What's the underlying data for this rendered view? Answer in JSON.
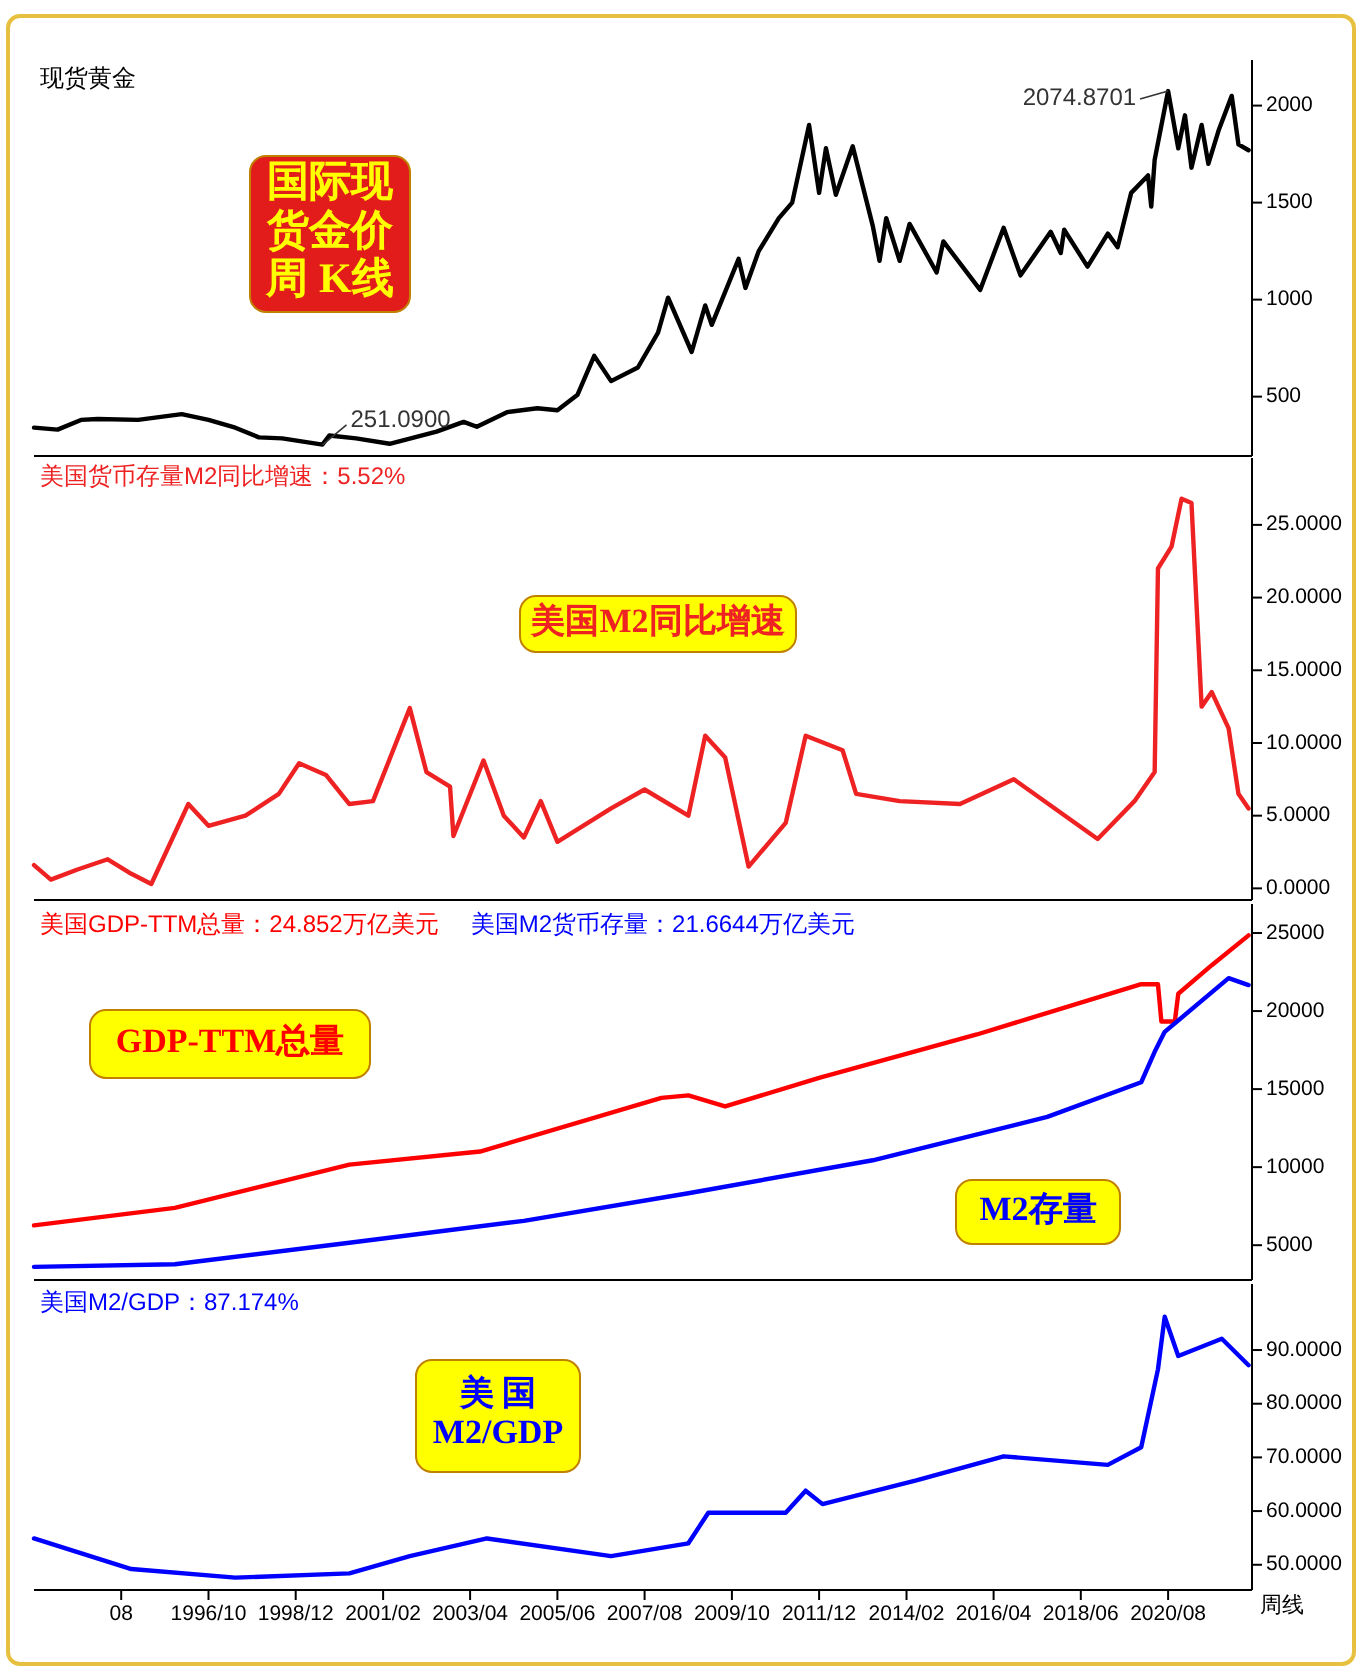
{
  "chart_data": [
    {
      "type": "line",
      "title": "现货黄金",
      "xlim": [
        "1992-06",
        "2022-09"
      ],
      "ylim": [
        194,
        2235
      ],
      "yticks": [
        500,
        1000,
        1500,
        2000
      ],
      "tick_labels": "y",
      "annotations": [
        "国际现货金价周 K线",
        {
          "text": "2074.8701",
          "x": "2020-08",
          "y": 2074.8701
        },
        {
          "text": "251.0900",
          "x": "1999-08",
          "y": 251.09
        }
      ],
      "series": [
        {
          "color": "#000000",
          "x": [
            "1992-06",
            "1993-01",
            "1993-08",
            "1994-01",
            "1995-01",
            "1996-02",
            "1996-10",
            "1997-06",
            "1998-01",
            "1998-08",
            "1999-08",
            "1999-10",
            "2000-06",
            "2001-04",
            "2002-06",
            "2003-02",
            "2003-06",
            "2004-03",
            "2004-12",
            "2005-06",
            "2005-12",
            "2006-05",
            "2006-10",
            "2007-06",
            "2007-12",
            "2008-03",
            "2008-10",
            "2009-02",
            "2009-04",
            "2009-12",
            "2010-02",
            "2010-06",
            "2010-12",
            "2011-04",
            "2011-09",
            "2011-12",
            "2012-02",
            "2012-05",
            "2012-10",
            "2013-04",
            "2013-06",
            "2013-08",
            "2013-12",
            "2014-03",
            "2014-11",
            "2015-01",
            "2015-12",
            "2016-07",
            "2016-12",
            "2017-09",
            "2017-12",
            "2018-01",
            "2018-08",
            "2019-02",
            "2019-05",
            "2019-09",
            "2020-02",
            "2020-03",
            "2020-04",
            "2020-08",
            "2020-11",
            "2021-01",
            "2021-03",
            "2021-06",
            "2021-08",
            "2021-11",
            "2022-03",
            "2022-05",
            "2022-08"
          ],
          "values": [
            340,
            330,
            380,
            385,
            380,
            410,
            380,
            340,
            290,
            285,
            253,
            300,
            285,
            257,
            320,
            370,
            345,
            420,
            440,
            430,
            510,
            710,
            580,
            650,
            830,
            1010,
            730,
            970,
            870,
            1210,
            1060,
            1250,
            1420,
            1500,
            1900,
            1550,
            1780,
            1540,
            1790,
            1380,
            1200,
            1420,
            1200,
            1390,
            1140,
            1300,
            1050,
            1370,
            1125,
            1350,
            1240,
            1360,
            1170,
            1340,
            1270,
            1550,
            1640,
            1480,
            1720,
            2075,
            1780,
            1950,
            1680,
            1900,
            1700,
            1870,
            2050,
            1800,
            1770
          ]
        }
      ]
    },
    {
      "type": "line",
      "title": "美国货币存量M2同比增速：5.52%",
      "xlim": [
        "1992-06",
        "2022-09"
      ],
      "ylim": [
        -0.8,
        29.6
      ],
      "yticks": [
        {
          "value": 0,
          "label": "0.0000"
        },
        {
          "value": 5,
          "label": "5.0000"
        },
        {
          "value": 10,
          "label": "10.0000"
        },
        {
          "value": 15,
          "label": "15.0000"
        },
        {
          "value": 20,
          "label": "20.0000"
        },
        {
          "value": 25,
          "label": "25.0000"
        }
      ],
      "tick_labels": "y",
      "annotations": [
        "美国M2同比增速"
      ],
      "series": [
        {
          "color": "#ee2222",
          "x": [
            "1992-06",
            "1992-11",
            "1993-07",
            "1994-04",
            "1994-11",
            "1995-05",
            "1996-04",
            "1996-10",
            "1997-09",
            "1998-07",
            "1999-01",
            "1999-09",
            "2000-04",
            "2000-11",
            "2001-10",
            "2002-03",
            "2002-10",
            "2002-11",
            "2003-08",
            "2004-02",
            "2004-08",
            "2005-01",
            "2005-06",
            "2006-10",
            "2007-08",
            "2008-09",
            "2009-02",
            "2009-08",
            "2010-03",
            "2011-02",
            "2011-08",
            "2012-07",
            "2012-11",
            "2013-12",
            "2015-06",
            "2016-10",
            "2018-11",
            "2019-10",
            "2020-04",
            "2020-05",
            "2020-09",
            "2020-12",
            "2021-03",
            "2021-06",
            "2021-09",
            "2022-02",
            "2022-05",
            "2022-08"
          ],
          "values": [
            1.6,
            0.6,
            1.3,
            2.0,
            1.0,
            0.3,
            5.8,
            4.3,
            5.0,
            6.5,
            8.6,
            7.8,
            5.8,
            6.0,
            12.4,
            8.0,
            7.0,
            3.6,
            8.8,
            5.0,
            3.5,
            6.0,
            3.2,
            5.5,
            6.8,
            5.0,
            10.5,
            9.0,
            1.5,
            4.5,
            10.5,
            9.5,
            6.5,
            6.0,
            5.8,
            7.5,
            3.4,
            6.0,
            8.0,
            22.0,
            23.5,
            26.8,
            26.5,
            12.5,
            13.5,
            11.0,
            6.5,
            5.5
          ]
        }
      ]
    },
    {
      "type": "line",
      "xlim": [
        "1992-06",
        "2022-09"
      ],
      "ylim": [
        2770,
        26860
      ],
      "yticks": [
        5000,
        10000,
        15000,
        20000,
        25000
      ],
      "tick_labels": "y",
      "legend": "top left",
      "annotations": [
        "GDP-TTM总量",
        "M2存量"
      ],
      "series": [
        {
          "name": "美国GDP-TTM总量：24.852万亿美元",
          "color": "#ff0000",
          "x": [
            "1992-06",
            "1995-12",
            "2000-04",
            "2003-07",
            "2008-01",
            "2008-09",
            "2009-08",
            "2011-12",
            "2015-11",
            "2019-12",
            "2020-05",
            "2020-06",
            "2020-10",
            "2020-11",
            "2021-09",
            "2022-08"
          ],
          "values": [
            6270,
            7390,
            10160,
            11000,
            14440,
            14600,
            13890,
            15720,
            18500,
            21720,
            21720,
            19330,
            19330,
            21110,
            22940,
            24852
          ]
        },
        {
          "name": "美国M2货币存量：21.6644万亿美元",
          "color": "#0000ff",
          "x": [
            "1992-06",
            "1995-12",
            "2000-04",
            "2004-08",
            "2008-09",
            "2013-04",
            "2017-08",
            "2019-12",
            "2020-04",
            "2020-07",
            "2022-02",
            "2022-08"
          ],
          "values": [
            3610,
            3780,
            5160,
            6560,
            8330,
            10440,
            13220,
            15440,
            17390,
            18670,
            22110,
            21664
          ]
        }
      ]
    },
    {
      "type": "line",
      "title": "美国M2/GDP：87.174%",
      "xlim": [
        "1992-06",
        "2022-09"
      ],
      "ylim": [
        45.3,
        102.3
      ],
      "yticks": [
        {
          "value": 50,
          "label": "50.0000"
        },
        {
          "value": 60,
          "label": "60.0000"
        },
        {
          "value": 70,
          "label": "70.0000"
        },
        {
          "value": 80,
          "label": "80.0000"
        },
        {
          "value": 90,
          "label": "90.0000"
        }
      ],
      "xticks": [
        {
          "value": "1994-08",
          "label": "08"
        },
        {
          "value": "1996-10",
          "label": "1996/10"
        },
        {
          "value": "1998-12",
          "label": "1998/12"
        },
        {
          "value": "2001-02",
          "label": "2001/02"
        },
        {
          "value": "2003-04",
          "label": "2003/04"
        },
        {
          "value": "2005-06",
          "label": "2005/06"
        },
        {
          "value": "2007-08",
          "label": "2007/08"
        },
        {
          "value": "2009-10",
          "label": "2009/10"
        },
        {
          "value": "2011-12",
          "label": "2011/12"
        },
        {
          "value": "2014-02",
          "label": "2014/02"
        },
        {
          "value": "2016-04",
          "label": "2016/04"
        },
        {
          "value": "2018-06",
          "label": "2018/06"
        },
        {
          "value": "2020-08",
          "label": "2020/08"
        }
      ],
      "annotations": [
        "美 国M2/GDP",
        "周线"
      ],
      "series": [
        {
          "color": "#0000ff",
          "x": [
            "1992-06",
            "1994-11",
            "1997-06",
            "2000-04",
            "2001-10",
            "2003-09",
            "2006-10",
            "2008-09",
            "2009-03",
            "2011-02",
            "2011-08",
            "2012-01",
            "2014-05",
            "2016-07",
            "2019-02",
            "2019-12",
            "2020-05",
            "2020-07",
            "2020-11",
            "2021-12",
            "2022-08"
          ],
          "values": [
            54.9,
            49.2,
            47.6,
            48.4,
            51.6,
            54.9,
            51.6,
            54.0,
            59.7,
            59.7,
            63.8,
            61.3,
            65.7,
            70.2,
            68.6,
            71.9,
            86.4,
            96.2,
            88.9,
            92.1,
            87.174
          ]
        }
      ]
    }
  ]
}
